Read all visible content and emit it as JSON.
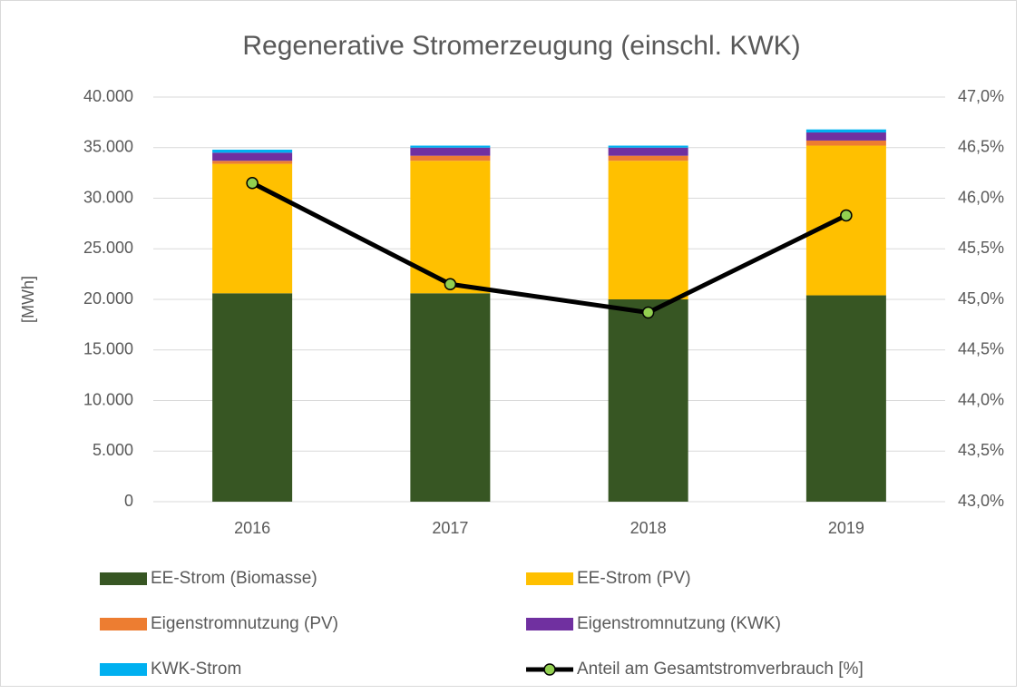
{
  "chart_data": {
    "type": "bar_line",
    "title": "Regenerative Stromerzeugung (einschl. KWK)",
    "y_label": "[MWh]",
    "categories": [
      "2016",
      "2017",
      "2018",
      "2019"
    ],
    "series": [
      {
        "name": "EE-Strom (Biomasse)",
        "color": "#375623",
        "values": [
          20600,
          20600,
          20000,
          20400
        ]
      },
      {
        "name": "EE-Strom (PV)",
        "color": "#ffc000",
        "values": [
          12800,
          13100,
          13700,
          14800
        ]
      },
      {
        "name": "Eigenstromnutzung (PV)",
        "color": "#ed7d31",
        "values": [
          300,
          500,
          500,
          500
        ]
      },
      {
        "name": "Eigenstromnutzung (KWK)",
        "color": "#7030a0",
        "values": [
          800,
          800,
          800,
          800
        ]
      },
      {
        "name": "KWK-Strom",
        "color": "#00b0f0",
        "values": [
          300,
          200,
          200,
          300
        ]
      },
      {
        "name": "Anteil am Gesamtstromverbrauch [%]",
        "color": "#000000",
        "marker_color": "#92d050",
        "type": "line",
        "axis": "y2",
        "values": [
          46.15,
          45.15,
          44.87,
          45.83
        ]
      }
    ],
    "ylim": [
      0,
      40000
    ],
    "yticks": [
      0,
      {
        "value": 5000,
        "label": "5.000"
      },
      {
        "value": 10000,
        "label": "10.000"
      },
      {
        "value": 15000,
        "label": "15.000"
      },
      {
        "value": 20000,
        "label": "20.000"
      },
      {
        "value": 25000,
        "label": "25.000"
      },
      {
        "value": 30000,
        "label": "30.000"
      },
      {
        "value": 35000,
        "label": "35.000"
      },
      {
        "value": 40000,
        "label": "40.000"
      }
    ],
    "y2lim": [
      43,
      47
    ],
    "y2ticks": [
      {
        "value": 43,
        "label": "43,0%"
      },
      {
        "value": 43.5,
        "label": "43,5%"
      },
      {
        "value": 44,
        "label": "44,0%"
      },
      {
        "value": 44.5,
        "label": "44,5%"
      },
      {
        "value": 45,
        "label": "45,0%"
      },
      {
        "value": 45.5,
        "label": "45,5%"
      },
      {
        "value": 46,
        "label": "46,0%"
      },
      {
        "value": 46.5,
        "label": "46,5%"
      },
      {
        "value": 47,
        "label": "47,0%"
      }
    ],
    "grid": true
  }
}
